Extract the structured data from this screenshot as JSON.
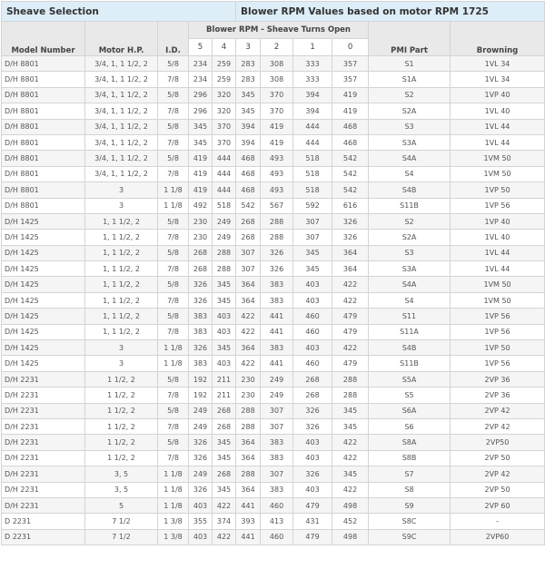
{
  "title_left": "Sheave Selection",
  "title_right": "Blower RPM Values based on motor RPM 1725",
  "headers": {
    "model": "Model Number",
    "motor": "Motor H.P.",
    "id": "I.D.",
    "blower_group": "Blower RPM - Sheave Turns Open",
    "turns": [
      "5",
      "4",
      "3",
      "2",
      "1",
      "0"
    ],
    "pmi": "PMI Part",
    "browning": "Browning"
  },
  "rows": [
    [
      "D/H 8801",
      "3/4, 1, 1 1/2, 2",
      "5/8",
      "234",
      "259",
      "283",
      "308",
      "333",
      "357",
      "S1",
      "1VL 34"
    ],
    [
      "D/H 8801",
      "3/4, 1, 1 1/2, 2",
      "7/8",
      "234",
      "259",
      "283",
      "308",
      "333",
      "357",
      "S1A",
      "1VL 34"
    ],
    [
      "D/H 8801",
      "3/4, 1, 1 1/2, 2",
      "5/8",
      "296",
      "320",
      "345",
      "370",
      "394",
      "419",
      "S2",
      "1VP 40"
    ],
    [
      "D/H 8801",
      "3/4, 1, 1 1/2, 2",
      "7/8",
      "296",
      "320",
      "345",
      "370",
      "394",
      "419",
      "S2A",
      "1VL 40"
    ],
    [
      "D/H 8801",
      "3/4, 1, 1 1/2, 2",
      "5/8",
      "345",
      "370",
      "394",
      "419",
      "444",
      "468",
      "S3",
      "1VL 44"
    ],
    [
      "D/H 8801",
      "3/4, 1, 1 1/2, 2",
      "7/8",
      "345",
      "370",
      "394",
      "419",
      "444",
      "468",
      "S3A",
      "1VL 44"
    ],
    [
      "D/H 8801",
      "3/4, 1, 1 1/2, 2",
      "5/8",
      "419",
      "444",
      "468",
      "493",
      "518",
      "542",
      "S4A",
      "1VM 50"
    ],
    [
      "D/H 8801",
      "3/4, 1, 1 1/2, 2",
      "7/8",
      "419",
      "444",
      "468",
      "493",
      "518",
      "542",
      "S4",
      "1VM 50"
    ],
    [
      "D/H 8801",
      "3",
      "1 1/8",
      "419",
      "444",
      "468",
      "493",
      "518",
      "542",
      "S4B",
      "1VP 50"
    ],
    [
      "D/H 8801",
      "3",
      "1 1/8",
      "492",
      "518",
      "542",
      "567",
      "592",
      "616",
      "S11B",
      "1VP 56"
    ],
    [
      "D/H 1425",
      "1, 1 1/2, 2",
      "5/8",
      "230",
      "249",
      "268",
      "288",
      "307",
      "326",
      "S2",
      "1VP 40"
    ],
    [
      "D/H 1425",
      "1, 1 1/2, 2",
      "7/8",
      "230",
      "249",
      "268",
      "288",
      "307",
      "326",
      "S2A",
      "1VL 40"
    ],
    [
      "D/H 1425",
      "1, 1 1/2, 2",
      "5/8",
      "268",
      "288",
      "307",
      "326",
      "345",
      "364",
      "S3",
      "1VL 44"
    ],
    [
      "D/H 1425",
      "1, 1 1/2, 2",
      "7/8",
      "268",
      "288",
      "307",
      "326",
      "345",
      "364",
      "S3A",
      "1VL 44"
    ],
    [
      "D/H 1425",
      "1, 1 1/2, 2",
      "5/8",
      "326",
      "345",
      "364",
      "383",
      "403",
      "422",
      "S4A",
      "1VM 50"
    ],
    [
      "D/H 1425",
      "1, 1 1/2, 2",
      "7/8",
      "326",
      "345",
      "364",
      "383",
      "403",
      "422",
      "S4",
      "1VM 50"
    ],
    [
      "D/H 1425",
      "1, 1 1/2, 2",
      "5/8",
      "383",
      "403",
      "422",
      "441",
      "460",
      "479",
      "S11",
      "1VP 56"
    ],
    [
      "D/H 1425",
      "1, 1 1/2, 2",
      "7/8",
      "383",
      "403",
      "422",
      "441",
      "460",
      "479",
      "S11A",
      "1VP 56"
    ],
    [
      "D/H 1425",
      "3",
      "1 1/8",
      "326",
      "345",
      "364",
      "383",
      "403",
      "422",
      "S4B",
      "1VP 50"
    ],
    [
      "D/H 1425",
      "3",
      "1 1/8",
      "383",
      "403",
      "422",
      "441",
      "460",
      "479",
      "S11B",
      "1VP 56"
    ],
    [
      "D/H 2231",
      "1 1/2, 2",
      "5/8",
      "192",
      "211",
      "230",
      "249",
      "268",
      "288",
      "S5A",
      "2VP 36"
    ],
    [
      "D/H 2231",
      "1 1/2, 2",
      "7/8",
      "192",
      "211",
      "230",
      "249",
      "268",
      "288",
      "S5",
      "2VP 36"
    ],
    [
      "D/H 2231",
      "1 1/2, 2",
      "5/8",
      "249",
      "268",
      "288",
      "307",
      "326",
      "345",
      "S6A",
      "2VP 42"
    ],
    [
      "D/H 2231",
      "1 1/2, 2",
      "7/8",
      "249",
      "268",
      "288",
      "307",
      "326",
      "345",
      "S6",
      "2VP 42"
    ],
    [
      "D/H 2231",
      "1 1/2, 2",
      "5/8",
      "326",
      "345",
      "364",
      "383",
      "403",
      "422",
      "S8A",
      "2VP50"
    ],
    [
      "D/H 2231",
      "1 1/2, 2",
      "7/8",
      "326",
      "345",
      "364",
      "383",
      "403",
      "422",
      "S8B",
      "2VP 50"
    ],
    [
      "D/H 2231",
      "3, 5",
      "1 1/8",
      "249",
      "268",
      "288",
      "307",
      "326",
      "345",
      "S7",
      "2VP 42"
    ],
    [
      "D/H 2231",
      "3, 5",
      "1 1/8",
      "326",
      "345",
      "364",
      "383",
      "403",
      "422",
      "S8",
      "2VP 50"
    ],
    [
      "D/H 2231",
      "5",
      "1 1/8",
      "403",
      "422",
      "441",
      "460",
      "479",
      "498",
      "S9",
      "2VP 60"
    ],
    [
      "D 2231",
      "7 1/2",
      "1 3/8",
      "355",
      "374",
      "393",
      "413",
      "431",
      "452",
      "S8C",
      "-"
    ],
    [
      "D 2231",
      "7 1/2",
      "1 3/8",
      "403",
      "422",
      "441",
      "460",
      "479",
      "498",
      "S9C",
      "2VP60"
    ]
  ]
}
